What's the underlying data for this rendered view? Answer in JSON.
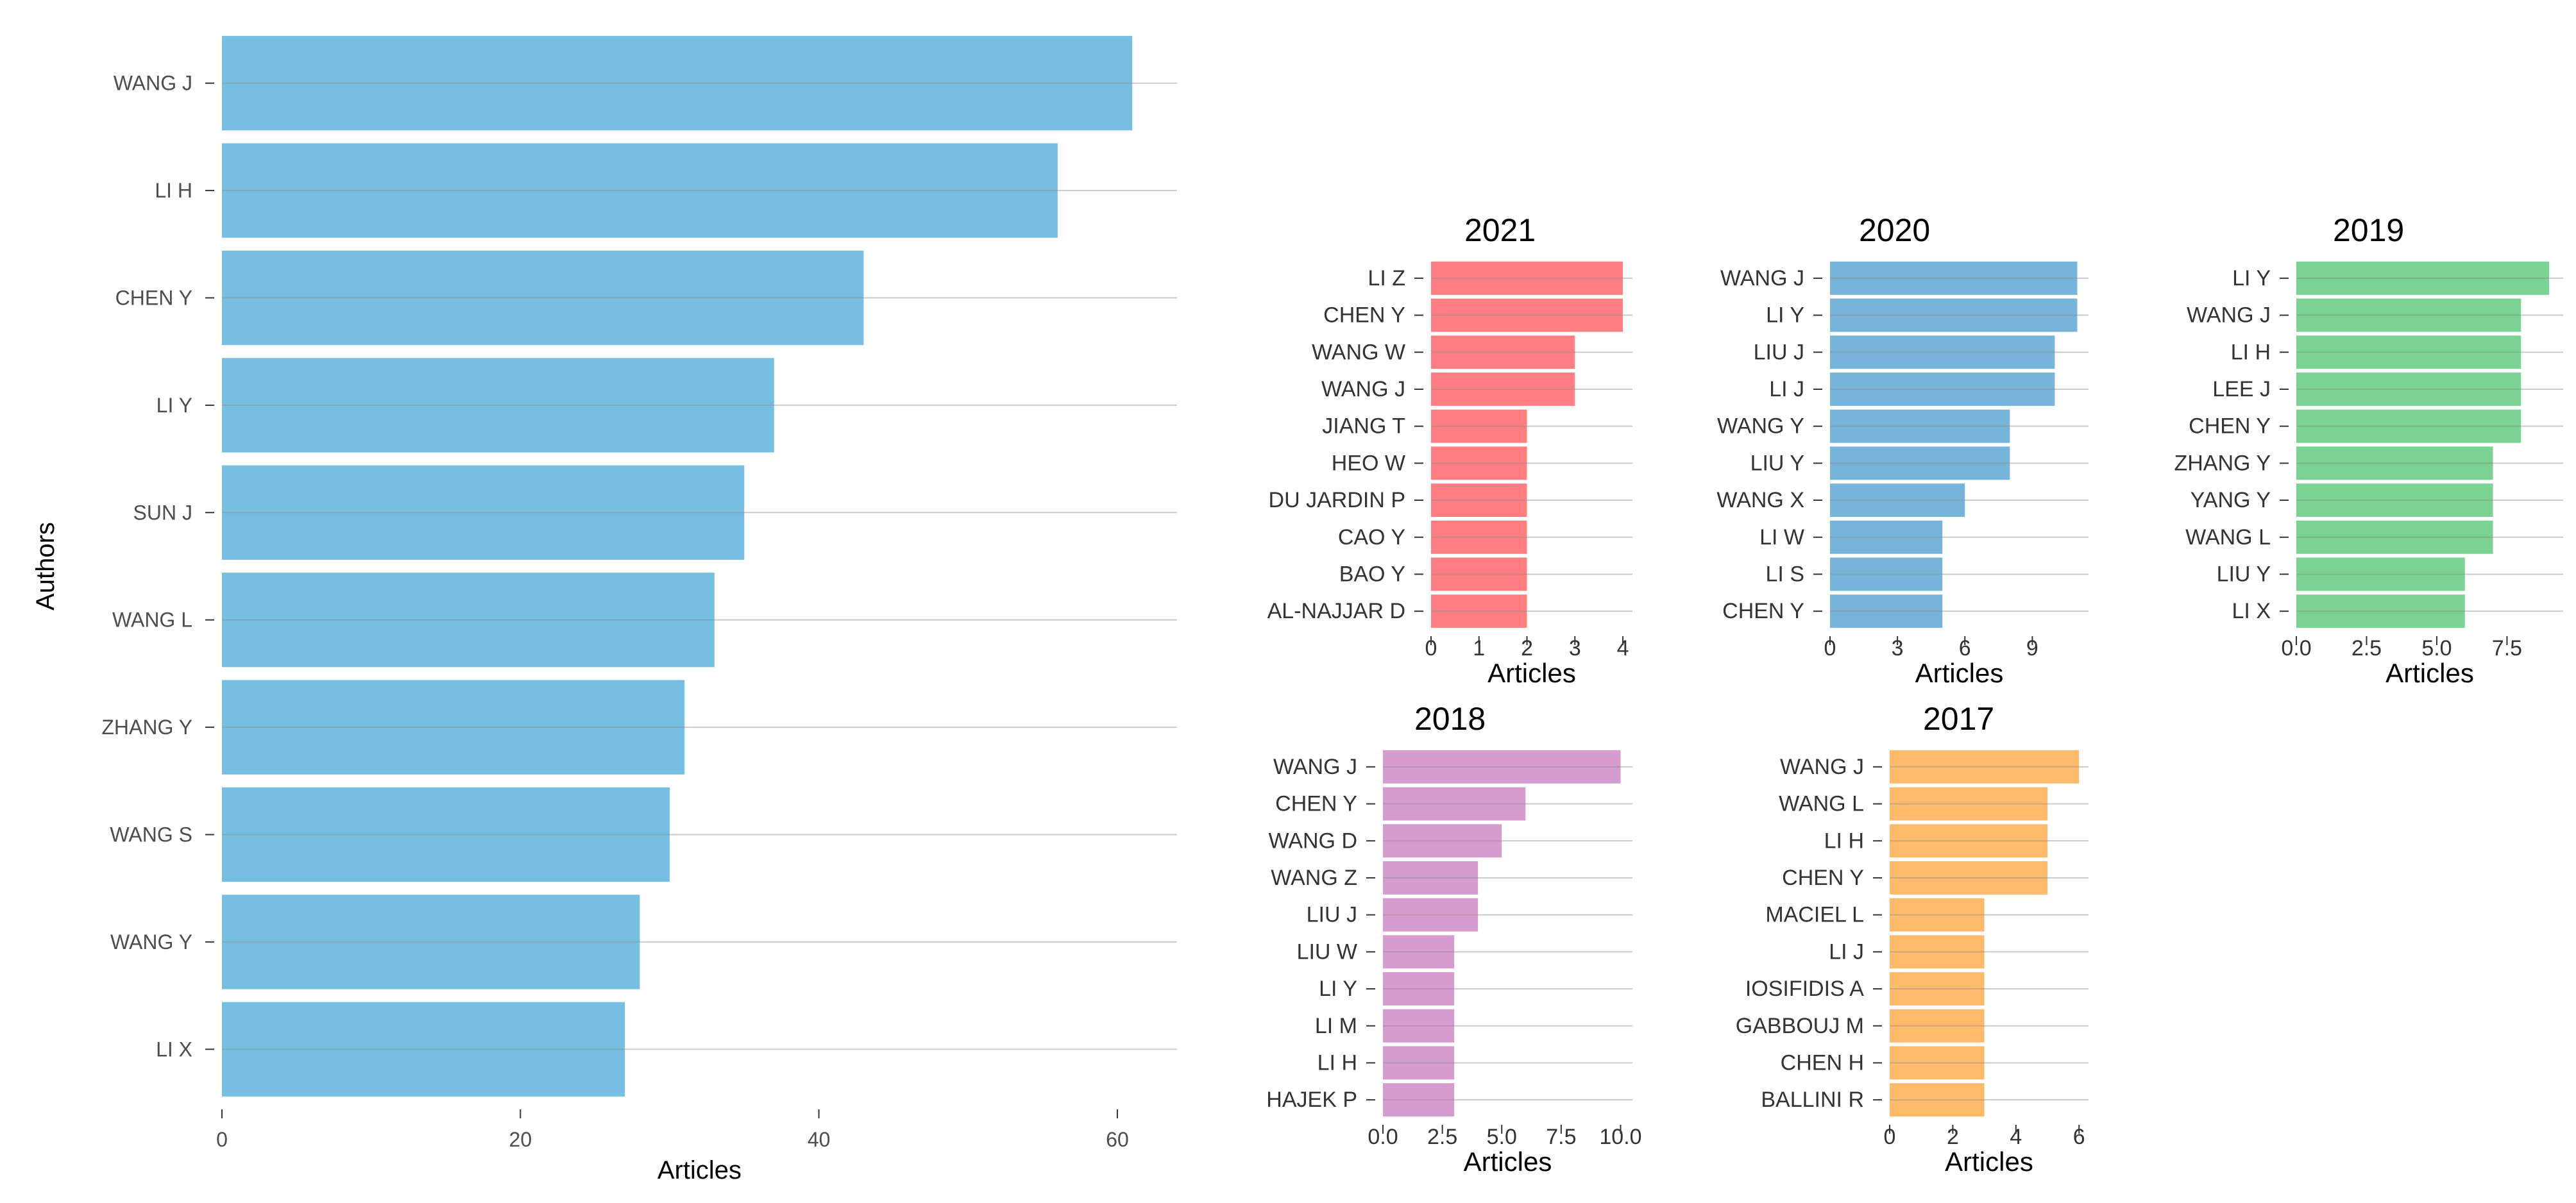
{
  "chart_data": [
    {
      "type": "bar",
      "orientation": "horizontal",
      "title": "",
      "xlabel": "Articles",
      "ylabel": "Authors",
      "color": "#6BBADF",
      "categories": [
        "WANG J",
        "LI H",
        "CHEN Y",
        "LI Y",
        "SUN J",
        "WANG L",
        "ZHANG Y",
        "WANG S",
        "WANG Y",
        "LI X"
      ],
      "values": [
        61,
        56,
        43,
        37,
        35,
        33,
        31,
        30,
        28,
        27
      ],
      "xticks": [
        "0",
        "20",
        "40",
        "60"
      ],
      "xlim": [
        0,
        64
      ]
    },
    {
      "type": "bar",
      "orientation": "horizontal",
      "title": "2021",
      "xlabel": "Articles",
      "color": "#FF7376",
      "categories": [
        "LI Z",
        "CHEN Y",
        "WANG W",
        "WANG J",
        "JIANG T",
        "HEO W",
        "DU JARDIN P",
        "CAO Y",
        "BAO Y",
        "AL-NAJJAR D"
      ],
      "values": [
        4,
        4,
        3,
        3,
        2,
        2,
        2,
        2,
        2,
        2
      ],
      "xticks": [
        "0",
        "1",
        "2",
        "3",
        "4"
      ],
      "xlim": [
        0,
        4.2
      ]
    },
    {
      "type": "bar",
      "orientation": "horizontal",
      "title": "2020",
      "xlabel": "Articles",
      "color": "#6BAED6",
      "categories": [
        "WANG J",
        "LI Y",
        "LIU J",
        "LI J",
        "WANG Y",
        "LIU Y",
        "WANG X",
        "LI W",
        "LI S",
        "CHEN Y"
      ],
      "values": [
        11,
        11,
        10,
        10,
        8,
        8,
        6,
        5,
        5,
        5
      ],
      "xticks": [
        "0",
        "3",
        "6",
        "9"
      ],
      "xlim": [
        0,
        11.5
      ]
    },
    {
      "type": "bar",
      "orientation": "horizontal",
      "title": "2019",
      "xlabel": "Articles",
      "color": "#6FCE8A",
      "categories": [
        "LI Y",
        "WANG J",
        "LI H",
        "LEE J",
        "CHEN Y",
        "ZHANG Y",
        "YANG Y",
        "WANG L",
        "LIU Y",
        "LI X"
      ],
      "values": [
        9,
        8,
        8,
        8,
        8,
        7,
        7,
        7,
        6,
        6
      ],
      "xticks": [
        "0.0",
        "2.5",
        "5.0",
        "7.5"
      ],
      "xlim": [
        0,
        9.5
      ]
    },
    {
      "type": "bar",
      "orientation": "horizontal",
      "title": "2018",
      "xlabel": "Articles",
      "color": "#D294CC",
      "categories": [
        "WANG J",
        "CHEN Y",
        "WANG D",
        "WANG Z",
        "LIU J",
        "LIU W",
        "LI Y",
        "LI M",
        "LI H",
        "HAJEK P"
      ],
      "values": [
        10,
        6,
        5,
        4,
        4,
        3,
        3,
        3,
        3,
        3
      ],
      "xticks": [
        "0.0",
        "2.5",
        "5.0",
        "7.5",
        "10.0"
      ],
      "xlim": [
        0,
        10.5
      ]
    },
    {
      "type": "bar",
      "orientation": "horizontal",
      "title": "2017",
      "xlabel": "Articles",
      "color": "#FFB45E",
      "categories": [
        "WANG J",
        "WANG L",
        "LI H",
        "CHEN Y",
        "MACIEL L",
        "LI J",
        "IOSIFIDIS A",
        "GABBOUJ M",
        "CHEN H",
        "BALLINI R"
      ],
      "values": [
        6,
        5,
        5,
        5,
        3,
        3,
        3,
        3,
        3,
        3
      ],
      "xticks": [
        "0",
        "2",
        "4",
        "6"
      ],
      "xlim": [
        0,
        6.3
      ]
    }
  ]
}
